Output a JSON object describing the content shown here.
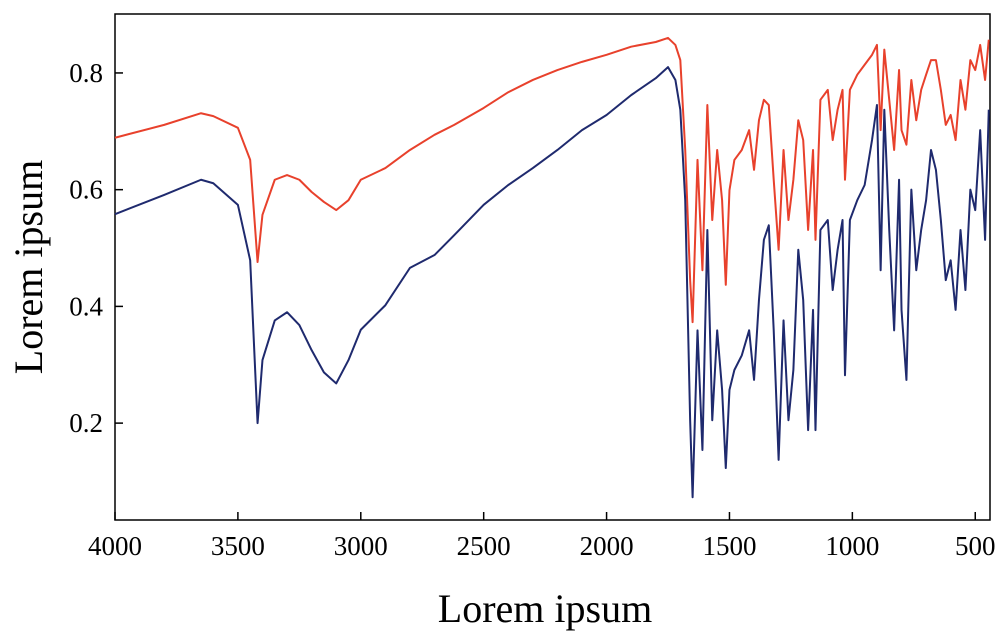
{
  "chart_data": {
    "type": "line",
    "xlabel": "Lorem ipsum",
    "ylabel": "Lorem ipsum",
    "xlim": [
      4000,
      440
    ],
    "ylim": [
      0.034,
      0.901
    ],
    "xticks": [
      4000,
      3500,
      3000,
      2500,
      2000,
      1500,
      1000,
      500
    ],
    "yticks": [
      0.2,
      0.4,
      0.6,
      0.8
    ],
    "x": [
      4000,
      3800,
      3650,
      3600,
      3500,
      3450,
      3420,
      3400,
      3350,
      3300,
      3250,
      3200,
      3150,
      3100,
      3050,
      3000,
      2900,
      2800,
      2700,
      2620,
      2500,
      2400,
      2300,
      2200,
      2100,
      2000,
      1900,
      1800,
      1750,
      1720,
      1700,
      1680,
      1660,
      1650,
      1630,
      1610,
      1590,
      1570,
      1550,
      1530,
      1515,
      1500,
      1480,
      1450,
      1420,
      1400,
      1380,
      1360,
      1340,
      1320,
      1300,
      1280,
      1260,
      1240,
      1220,
      1200,
      1180,
      1160,
      1150,
      1130,
      1100,
      1080,
      1060,
      1040,
      1030,
      1010,
      980,
      950,
      920,
      900,
      885,
      870,
      850,
      830,
      810,
      800,
      780,
      760,
      740,
      720,
      700,
      680,
      660,
      640,
      620,
      600,
      580,
      560,
      540,
      520,
      500,
      480,
      460,
      445
    ],
    "series": [
      {
        "color": "#e8412c",
        "values": [
          0.689,
          0.711,
          0.731,
          0.726,
          0.706,
          0.651,
          0.476,
          0.557,
          0.617,
          0.625,
          0.617,
          0.596,
          0.579,
          0.565,
          0.582,
          0.617,
          0.637,
          0.668,
          0.694,
          0.711,
          0.74,
          0.767,
          0.788,
          0.805,
          0.819,
          0.831,
          0.845,
          0.853,
          0.86,
          0.848,
          0.822,
          0.668,
          0.445,
          0.373,
          0.651,
          0.462,
          0.745,
          0.548,
          0.668,
          0.582,
          0.437,
          0.599,
          0.651,
          0.668,
          0.702,
          0.634,
          0.719,
          0.754,
          0.745,
          0.617,
          0.497,
          0.668,
          0.548,
          0.617,
          0.719,
          0.685,
          0.531,
          0.668,
          0.514,
          0.754,
          0.771,
          0.685,
          0.737,
          0.771,
          0.617,
          0.771,
          0.797,
          0.814,
          0.831,
          0.848,
          0.702,
          0.84,
          0.754,
          0.668,
          0.805,
          0.702,
          0.677,
          0.788,
          0.719,
          0.771,
          0.797,
          0.822,
          0.822,
          0.771,
          0.711,
          0.728,
          0.685,
          0.788,
          0.737,
          0.822,
          0.805,
          0.848,
          0.788,
          0.857
        ]
      },
      {
        "color": "#1f2a6e",
        "values": [
          0.558,
          0.591,
          0.617,
          0.611,
          0.574,
          0.479,
          0.2,
          0.308,
          0.376,
          0.39,
          0.368,
          0.325,
          0.287,
          0.268,
          0.308,
          0.36,
          0.402,
          0.466,
          0.488,
          0.522,
          0.574,
          0.608,
          0.637,
          0.668,
          0.702,
          0.728,
          0.762,
          0.791,
          0.81,
          0.788,
          0.737,
          0.582,
          0.205,
          0.073,
          0.359,
          0.154,
          0.531,
          0.205,
          0.359,
          0.257,
          0.123,
          0.257,
          0.291,
          0.316,
          0.359,
          0.274,
          0.411,
          0.514,
          0.539,
          0.359,
          0.137,
          0.376,
          0.205,
          0.291,
          0.497,
          0.411,
          0.188,
          0.394,
          0.188,
          0.531,
          0.548,
          0.428,
          0.497,
          0.548,
          0.282,
          0.548,
          0.582,
          0.608,
          0.685,
          0.745,
          0.462,
          0.737,
          0.531,
          0.359,
          0.617,
          0.394,
          0.274,
          0.6,
          0.462,
          0.531,
          0.582,
          0.668,
          0.634,
          0.548,
          0.445,
          0.479,
          0.394,
          0.531,
          0.428,
          0.6,
          0.565,
          0.702,
          0.514,
          0.737
        ]
      }
    ]
  }
}
